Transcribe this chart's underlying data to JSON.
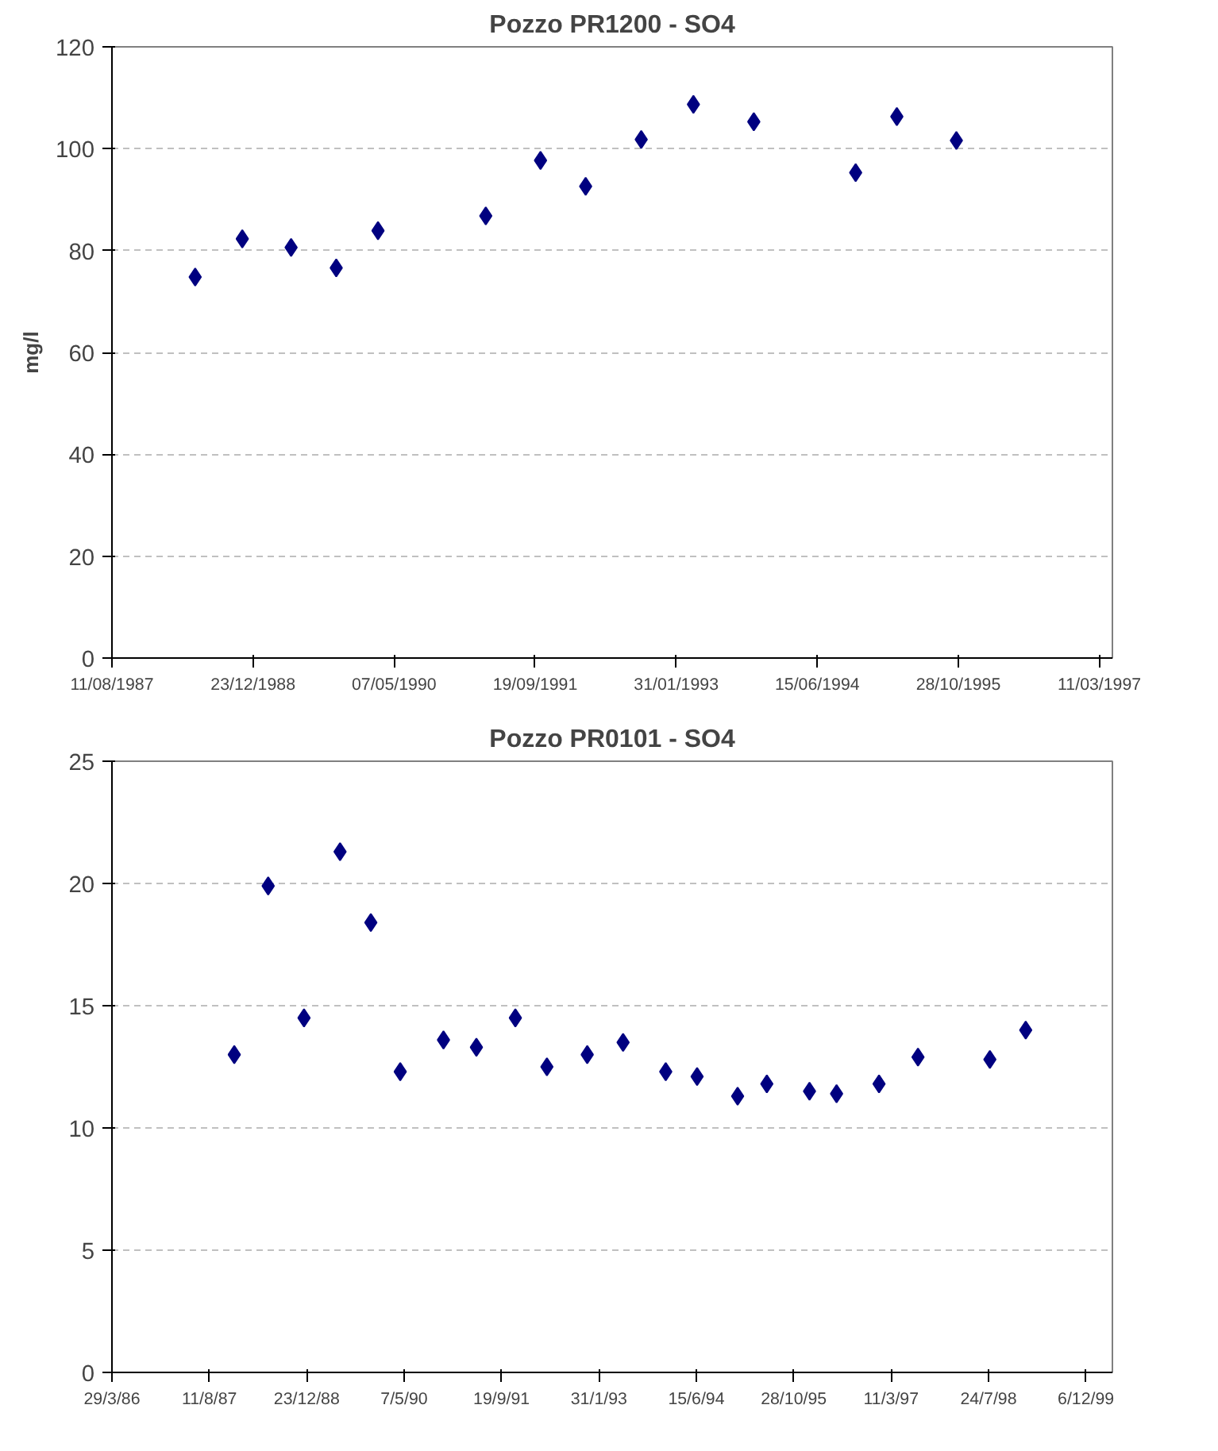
{
  "chart_data": [
    {
      "type": "scatter",
      "title": "Pozzo PR1200 - SO4",
      "ylabel": "mg/l",
      "marker": "diamond",
      "grid": "y",
      "x": [
        "1988-06-01",
        "1988-11-15",
        "1989-05-07",
        "1989-10-14",
        "1990-03-11",
        "1991-03-28",
        "1991-10-08",
        "1992-03-16",
        "1992-09-29",
        "1993-04-02",
        "1993-11-02",
        "1994-10-29",
        "1995-03-24",
        "1995-10-21"
      ],
      "series": [
        {
          "color": "#000080",
          "values": [
            74.8,
            82.3,
            80.6,
            76.6,
            83.9,
            86.8,
            97.7,
            92.6,
            101.8,
            108.7,
            105.3,
            95.3,
            106.3,
            101.6
          ]
        }
      ],
      "xlim": [
        "1987-08-11",
        "1997-04-26"
      ],
      "ylim": [
        0,
        120
      ],
      "yticks": [
        0,
        20,
        40,
        60,
        80,
        100,
        120
      ],
      "xticks": [
        {
          "value": "1987-08-11",
          "label": "11/08/1987"
        },
        {
          "value": "1988-12-23",
          "label": "23/12/1988"
        },
        {
          "value": "1990-05-07",
          "label": "07/05/1990"
        },
        {
          "value": "1991-09-19",
          "label": "19/09/1991"
        },
        {
          "value": "1993-01-31",
          "label": "31/01/1993"
        },
        {
          "value": "1994-06-15",
          "label": "15/06/1994"
        },
        {
          "value": "1995-10-28",
          "label": "28/10/1995"
        },
        {
          "value": "1997-03-11",
          "label": "11/03/1997"
        }
      ]
    },
    {
      "type": "scatter",
      "title": "Pozzo PR0101 - SO4",
      "marker": "diamond",
      "grid": "y",
      "x": [
        "1987-12-17",
        "1988-06-08",
        "1988-12-09",
        "1989-06-12",
        "1989-11-17",
        "1990-04-17",
        "1990-11-25",
        "1991-05-13",
        "1991-11-29",
        "1992-05-09",
        "1992-12-02",
        "1993-06-04",
        "1994-01-09",
        "1994-06-19",
        "1995-01-13",
        "1995-06-12",
        "1996-01-17",
        "1996-06-04",
        "1997-01-08",
        "1997-07-27",
        "1998-07-31",
        "1999-01-31"
      ],
      "series": [
        {
          "color": "#000080",
          "values": [
            13.0,
            19.9,
            14.5,
            21.3,
            18.4,
            12.3,
            13.6,
            13.3,
            14.5,
            12.5,
            13.0,
            13.5,
            12.3,
            12.1,
            11.3,
            11.8,
            11.5,
            11.4,
            11.8,
            12.9,
            12.8,
            14.0
          ]
        }
      ],
      "xlim": [
        "1986-03-29",
        "2000-04-20"
      ],
      "ylim": [
        0,
        25
      ],
      "yticks": [
        0,
        5,
        10,
        15,
        20,
        25
      ],
      "xticks": [
        {
          "value": "1986-03-29",
          "label": "29/3/86"
        },
        {
          "value": "1987-08-11",
          "label": "11/8/87"
        },
        {
          "value": "1988-12-23",
          "label": "23/12/88"
        },
        {
          "value": "1990-05-07",
          "label": "7/5/90"
        },
        {
          "value": "1991-09-19",
          "label": "19/9/91"
        },
        {
          "value": "1993-01-31",
          "label": "31/1/93"
        },
        {
          "value": "1994-06-15",
          "label": "15/6/94"
        },
        {
          "value": "1995-10-28",
          "label": "28/10/95"
        },
        {
          "value": "1997-03-11",
          "label": "11/3/97"
        },
        {
          "value": "1998-07-24",
          "label": "24/7/98"
        },
        {
          "value": "1999-12-06",
          "label": "6/12/99"
        }
      ]
    }
  ]
}
